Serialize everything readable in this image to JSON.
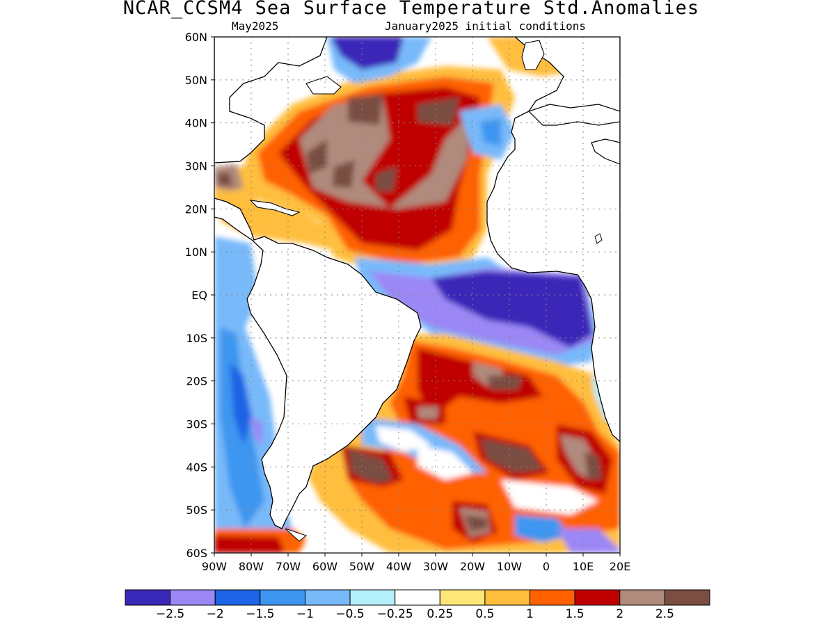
{
  "title": "NCAR_CCSM4 Sea Surface Temperature Std.Anomalies",
  "subtitle_left": "May2025",
  "subtitle_right": "January2025 initial conditions",
  "map": {
    "lon_range": [
      -90,
      20
    ],
    "lat_range": [
      -60,
      60
    ],
    "lat_ticks": [
      {
        "value": 60,
        "label": "60N"
      },
      {
        "value": 50,
        "label": "50N"
      },
      {
        "value": 40,
        "label": "40N"
      },
      {
        "value": 30,
        "label": "30N"
      },
      {
        "value": 20,
        "label": "20N"
      },
      {
        "value": 10,
        "label": "10N"
      },
      {
        "value": 0,
        "label": "EQ"
      },
      {
        "value": -10,
        "label": "10S"
      },
      {
        "value": -20,
        "label": "20S"
      },
      {
        "value": -30,
        "label": "30S"
      },
      {
        "value": -40,
        "label": "40S"
      },
      {
        "value": -50,
        "label": "50S"
      },
      {
        "value": -60,
        "label": "60S"
      }
    ],
    "lon_ticks": [
      {
        "value": -90,
        "label": "90W"
      },
      {
        "value": -80,
        "label": "80W"
      },
      {
        "value": -70,
        "label": "70W"
      },
      {
        "value": -60,
        "label": "60W"
      },
      {
        "value": -50,
        "label": "50W"
      },
      {
        "value": -40,
        "label": "40W"
      },
      {
        "value": -30,
        "label": "30W"
      },
      {
        "value": -20,
        "label": "20W"
      },
      {
        "value": -10,
        "label": "10W"
      },
      {
        "value": 0,
        "label": "0"
      },
      {
        "value": 10,
        "label": "10E"
      },
      {
        "value": 20,
        "label": "20E"
      }
    ],
    "grid": "dotted"
  },
  "colorbar": {
    "colors": [
      "#3a28b8",
      "#9b87f5",
      "#1e64e6",
      "#3c96f0",
      "#78b9fa",
      "#b4f0fa",
      "#ffffff",
      "#ffe678",
      "#ffbe3c",
      "#ff6000",
      "#c00000",
      "#b08a7c",
      "#7a4e42"
    ],
    "labels": [
      "−2.5",
      "−2",
      "−1.5",
      "−1",
      "−0.5",
      "−0.25",
      "0.25",
      "0.5",
      "1",
      "1.5",
      "2",
      "2.5"
    ]
  }
}
